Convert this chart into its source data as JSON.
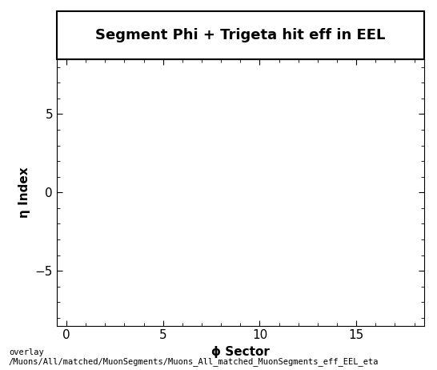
{
  "title": "Segment Phi + Trigeta hit eff in EEL",
  "xlabel": "ϕ Sector",
  "ylabel": "η Index",
  "xlim": [
    -0.5,
    18.5
  ],
  "ylim": [
    -8.5,
    8.5
  ],
  "xticks": [
    0,
    5,
    10,
    15
  ],
  "yticks": [
    -5,
    0,
    5
  ],
  "background_color": "#ffffff",
  "plot_bg_color": "#ffffff",
  "footer_line1": "overlay",
  "footer_line2": "/Muons/All/matched/MuonSegments/Muons_All_matched_MuonSegments_eff_EEL_eta",
  "title_fontsize": 13,
  "axis_label_fontsize": 11,
  "tick_fontsize": 11,
  "footer_fontsize": 7.5
}
